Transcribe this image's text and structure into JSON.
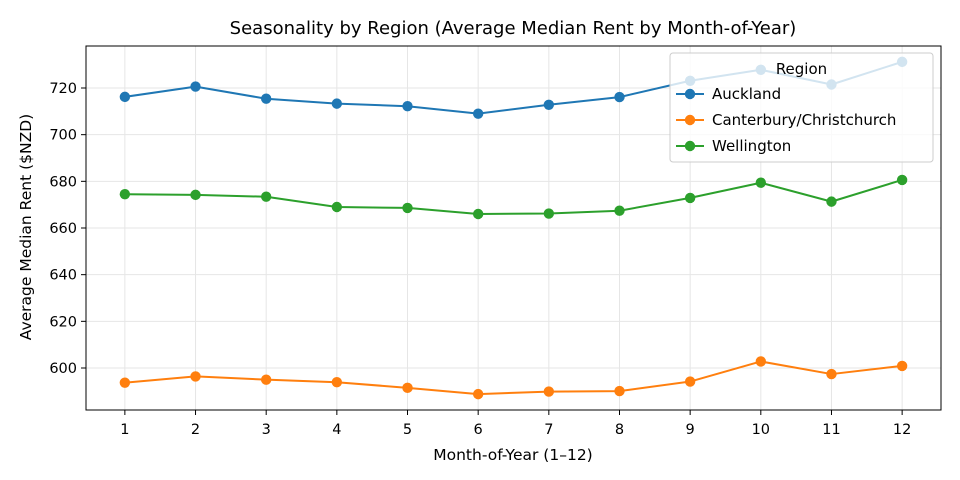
{
  "chart_data": {
    "type": "line",
    "title": "Seasonality by Region (Average Median Rent by Month-of-Year)",
    "xlabel": "Month-of-Year (1–12)",
    "ylabel": "Average Median Rent ($NZD)",
    "x": [
      1,
      2,
      3,
      4,
      5,
      6,
      7,
      8,
      9,
      10,
      11,
      12
    ],
    "x_ticks": [
      "1",
      "2",
      "3",
      "4",
      "5",
      "6",
      "7",
      "8",
      "9",
      "10",
      "11",
      "12"
    ],
    "y_ticks": [
      "600",
      "620",
      "640",
      "660",
      "680",
      "700",
      "720"
    ],
    "y_tick_values": [
      600,
      620,
      640,
      660,
      680,
      700,
      720
    ],
    "xlim": [
      0.45,
      12.55
    ],
    "ylim": [
      582,
      738
    ],
    "grid": true,
    "legend": {
      "title": "Region",
      "placement": "top-right"
    },
    "series": [
      {
        "name": "Auckland",
        "color": "#1f77b4",
        "values": [
          716.2,
          720.6,
          715.4,
          713.3,
          712.2,
          709.0,
          712.8,
          716.1,
          723.1,
          727.8,
          721.5,
          731.2
        ]
      },
      {
        "name": "Canterbury/Christchurch",
        "color": "#ff7f0e",
        "values": [
          593.7,
          596.4,
          595.0,
          593.9,
          591.5,
          588.8,
          589.9,
          590.1,
          594.2,
          602.8,
          597.4,
          600.9
        ]
      },
      {
        "name": "Wellington",
        "color": "#2ca02c",
        "values": [
          674.5,
          674.2,
          673.4,
          669.0,
          668.6,
          666.0,
          666.2,
          667.4,
          672.9,
          679.4,
          671.3,
          680.6
        ]
      }
    ]
  }
}
